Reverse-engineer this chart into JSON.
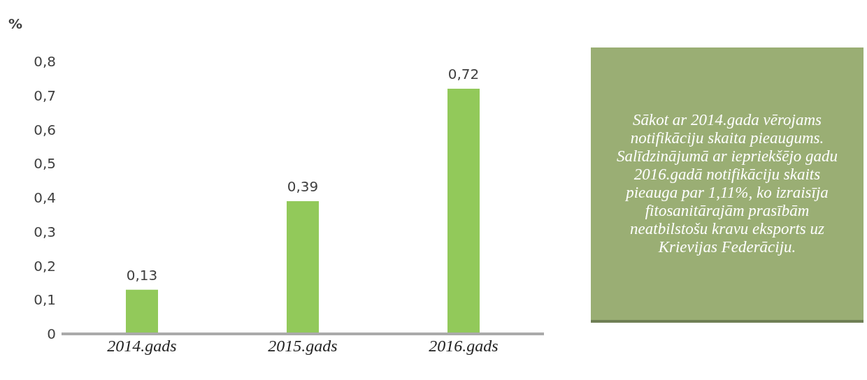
{
  "chart_data": {
    "type": "bar",
    "ylabel": "%",
    "categories": [
      "2014.gads",
      "2015.gads",
      "2016.gads"
    ],
    "values": [
      0.13,
      0.39,
      0.72
    ],
    "value_labels": [
      "0,13",
      "0,39",
      "0,72"
    ],
    "color": "#92c95a",
    "ylim": [
      0,
      0.8
    ],
    "yticks": [
      {
        "value": 0,
        "label": "0"
      },
      {
        "value": 0.1,
        "label": "0,1"
      },
      {
        "value": 0.2,
        "label": "0,2"
      },
      {
        "value": 0.3,
        "label": "0,3"
      },
      {
        "value": 0.4,
        "label": "0,4"
      },
      {
        "value": 0.5,
        "label": "0,5"
      },
      {
        "value": 0.6,
        "label": "0,6"
      },
      {
        "value": 0.7,
        "label": "0,7"
      },
      {
        "value": 0.8,
        "label": "0,8"
      }
    ],
    "grid": false,
    "legend": false,
    "annotations": [
      "Sākot ar 2014.gada vērojams notifikāciju skaita pieaugums. Salīdzinājumā ar iepriekšējo gadu 2016.gadā notifikāciju skaits pieauga par 1,11%, ko izraisīja fitosanitārajām prasībām neatbilstošu kravu eksports uz Krievijas Federāciju."
    ]
  }
}
